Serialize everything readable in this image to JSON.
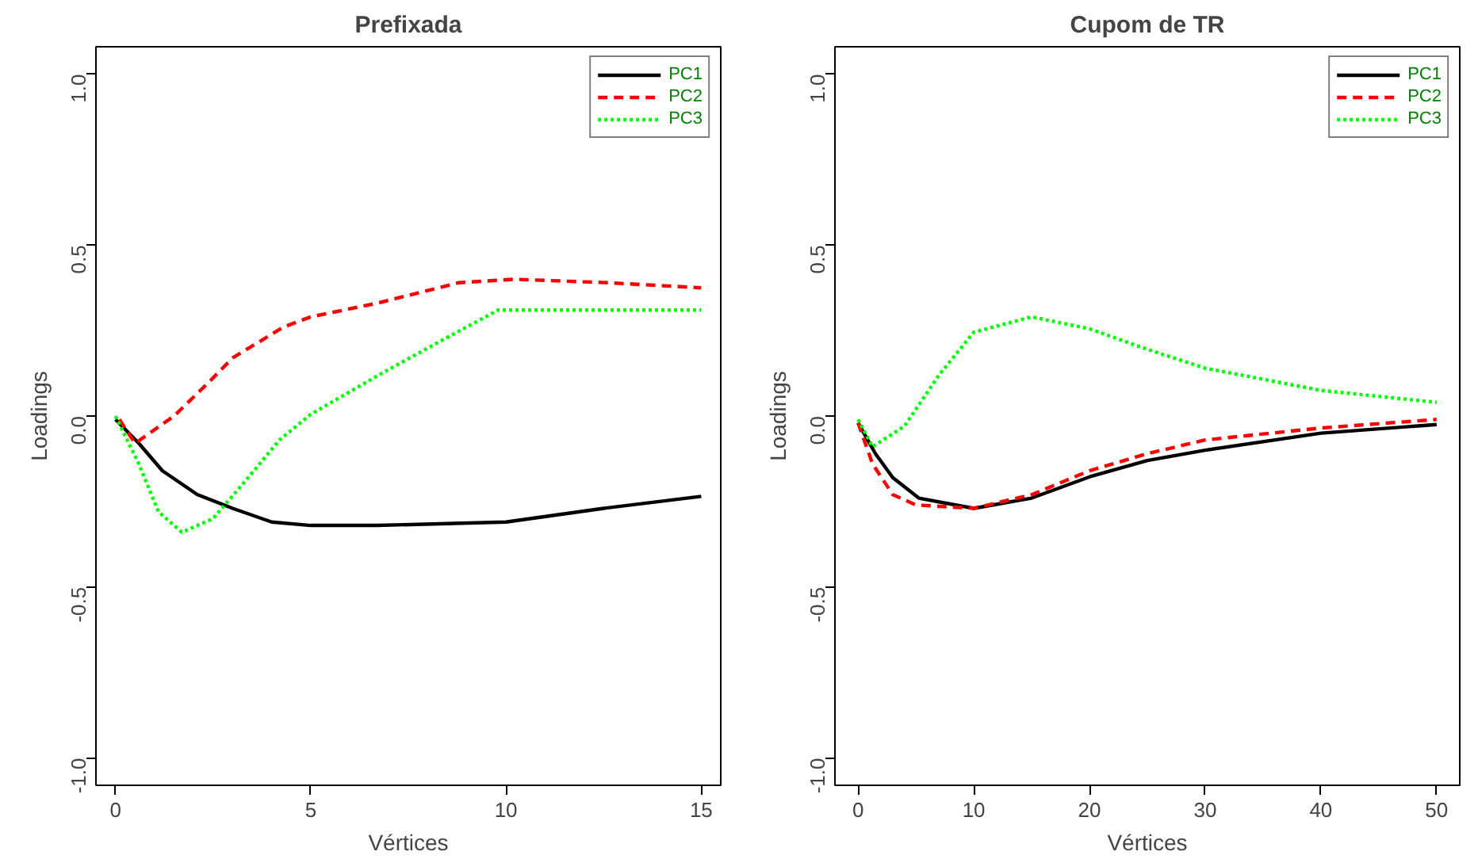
{
  "chart_data": [
    {
      "type": "line",
      "title": "Prefixada",
      "xlabel": "Vértices",
      "ylabel": "Loadings",
      "xlim": [
        -0.5,
        15.5
      ],
      "ylim": [
        -1.08,
        1.08
      ],
      "xticks": [
        0,
        5,
        10,
        15
      ],
      "yticks": [
        {
          "value": -1.0,
          "label": "-1.0"
        },
        {
          "value": -0.5,
          "label": "-0.5"
        },
        {
          "value": 0.0,
          "label": "0.0"
        },
        {
          "value": 0.5,
          "label": "0.5"
        },
        {
          "value": 1.0,
          "label": "1.0"
        }
      ],
      "grid": false,
      "legend": "top right",
      "marker": "none",
      "series": [
        {
          "name": "PC1",
          "color": "#000000",
          "line_style": "solid",
          "x": [
            0,
            0.6,
            1.2,
            2.1,
            3,
            4,
            5,
            6.7,
            10,
            12.5,
            15
          ],
          "values": [
            -0.01,
            -0.08,
            -0.16,
            -0.23,
            -0.27,
            -0.31,
            -0.32,
            -0.32,
            -0.31,
            -0.27,
            -0.235
          ]
        },
        {
          "name": "PC2",
          "color": "#ff0000",
          "line_style": "dashed",
          "x": [
            0.1,
            0.5,
            1.5,
            2.4,
            3,
            4.3,
            5,
            6.7,
            8.8,
            10.2,
            12.6,
            15
          ],
          "values": [
            -0.01,
            -0.08,
            0,
            0.1,
            0.17,
            0.26,
            0.29,
            0.33,
            0.39,
            0.4,
            0.39,
            0.375
          ]
        },
        {
          "name": "PC3",
          "color": "#00ff00",
          "line_style": "dotted",
          "x": [
            0,
            0.6,
            1.1,
            1.7,
            2.5,
            3.4,
            4.2,
            5,
            6.9,
            8.5,
            9.8,
            11.2,
            15
          ],
          "values": [
            0,
            -0.14,
            -0.28,
            -0.34,
            -0.3,
            -0.18,
            -0.07,
            0.005,
            0.13,
            0.23,
            0.31,
            0.31,
            0.31
          ]
        }
      ]
    },
    {
      "type": "line",
      "title": "Cupom de TR",
      "xlabel": "Vértices",
      "ylabel": "Loadings",
      "xlim": [
        -2,
        52
      ],
      "ylim": [
        -1.08,
        1.08
      ],
      "xticks": [
        0,
        10,
        20,
        30,
        40,
        50
      ],
      "yticks": [
        {
          "value": -1.0,
          "label": "-1.0"
        },
        {
          "value": -0.5,
          "label": "-0.5"
        },
        {
          "value": 0.0,
          "label": "0.0"
        },
        {
          "value": 0.5,
          "label": "0.5"
        },
        {
          "value": 1.0,
          "label": "1.0"
        }
      ],
      "grid": false,
      "legend": "top right",
      "marker": "none",
      "series": [
        {
          "name": "PC1",
          "color": "#000000",
          "line_style": "solid",
          "x": [
            0,
            1.5,
            3,
            5.25,
            10,
            15,
            20.25,
            25,
            30,
            40,
            50
          ],
          "values": [
            -0.02,
            -0.11,
            -0.18,
            -0.24,
            -0.27,
            -0.24,
            -0.175,
            -0.13,
            -0.1,
            -0.05,
            -0.025
          ]
        },
        {
          "name": "PC2",
          "color": "#ff0000",
          "line_style": "dashed",
          "x": [
            0,
            1.25,
            3,
            5,
            10,
            15,
            20,
            25,
            30,
            40,
            50
          ],
          "values": [
            -0.02,
            -0.14,
            -0.23,
            -0.26,
            -0.27,
            -0.23,
            -0.16,
            -0.11,
            -0.07,
            -0.035,
            -0.01
          ]
        },
        {
          "name": "PC3",
          "color": "#00ff00",
          "line_style": "dotted",
          "x": [
            0,
            1.25,
            4,
            7,
            10,
            15,
            20,
            25,
            30,
            40,
            50
          ],
          "values": [
            -0.01,
            -0.09,
            -0.03,
            0.12,
            0.245,
            0.29,
            0.255,
            0.195,
            0.14,
            0.075,
            0.04
          ]
        }
      ]
    }
  ]
}
